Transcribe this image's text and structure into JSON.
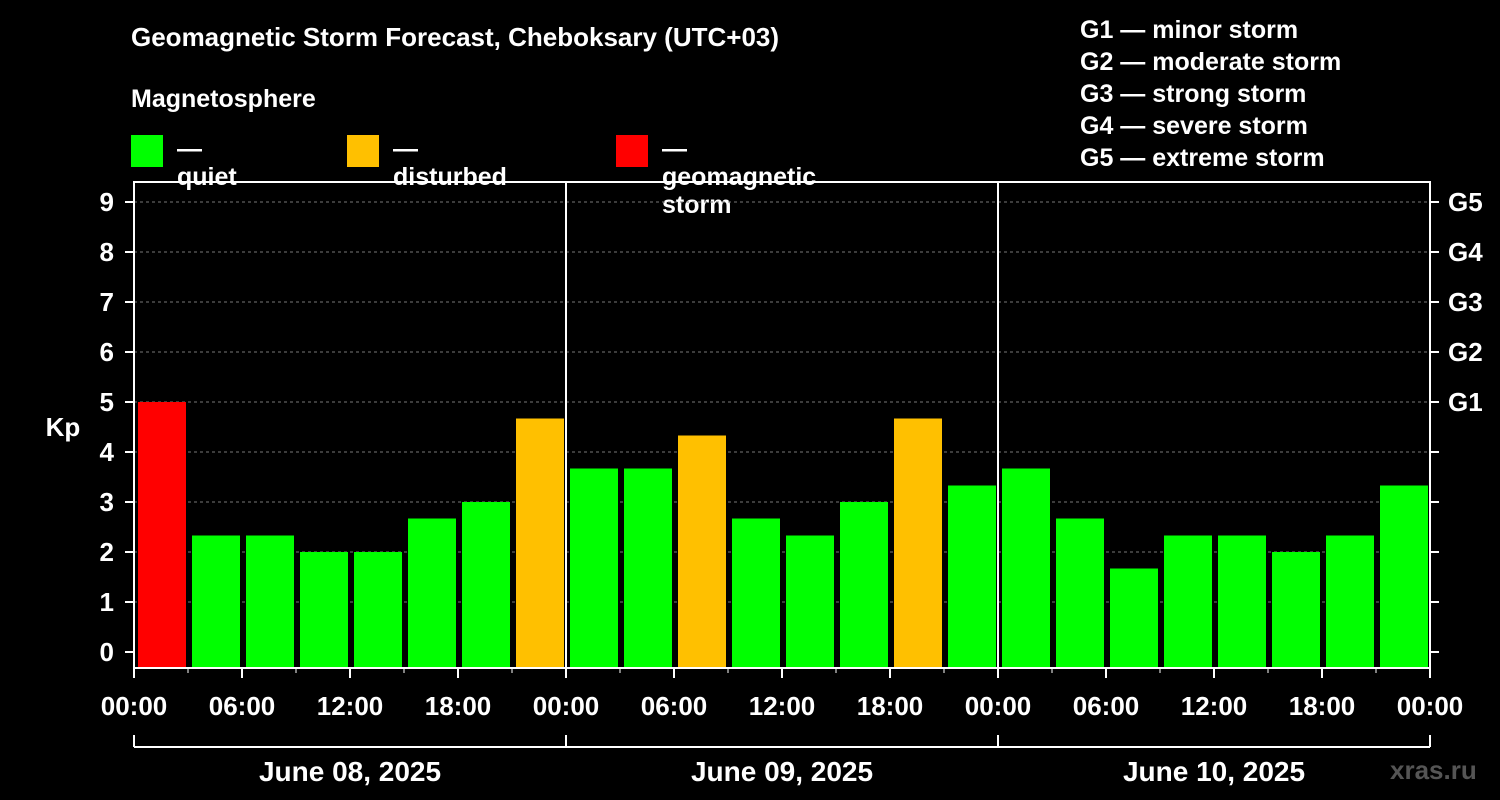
{
  "title": "Geomagnetic Storm Forecast, Cheboksary (UTC+03)",
  "subtitle": "Magnetosphere",
  "legend": [
    {
      "label": "— quiet",
      "color": "#00ff00"
    },
    {
      "label": "— disturbed",
      "color": "#ffc000"
    },
    {
      "label": "— geomagnetic storm",
      "color": "#ff0000"
    }
  ],
  "storm_scale": [
    "G1 — minor storm",
    "G2 — moderate storm",
    "G3 — strong storm",
    "G4 — severe storm",
    "G5 — extreme storm"
  ],
  "watermark": "xras.ru",
  "chart_data": {
    "type": "bar",
    "ylabel": "Kp",
    "ylim": [
      0,
      9
    ],
    "yticks": [
      "0",
      "1",
      "2",
      "3",
      "4",
      "5",
      "6",
      "7",
      "8",
      "9"
    ],
    "right_axis": {
      "ticks": [
        5,
        6,
        7,
        8,
        9
      ],
      "labels": [
        "G1",
        "G2",
        "G3",
        "G4",
        "G5"
      ]
    },
    "xtick_labels": [
      "00:00",
      "06:00",
      "12:00",
      "18:00",
      "00:00",
      "06:00",
      "12:00",
      "18:00",
      "00:00",
      "06:00",
      "12:00",
      "18:00",
      "00:00"
    ],
    "days": [
      "June 08, 2025",
      "June 09, 2025",
      "June 10, 2025"
    ],
    "interval_hours": 3,
    "grid": true,
    "colors": {
      "quiet": "#00ff00",
      "disturbed": "#ffc000",
      "storm": "#ff0000"
    },
    "values": [
      5.0,
      2.33,
      2.33,
      2.0,
      2.0,
      2.67,
      3.0,
      4.67,
      3.67,
      3.67,
      4.33,
      2.67,
      2.33,
      3.0,
      4.67,
      3.33,
      3.67,
      2.67,
      1.67,
      2.33,
      2.33,
      2.0,
      2.33,
      3.33
    ],
    "bar_status": [
      "storm",
      "quiet",
      "quiet",
      "quiet",
      "quiet",
      "quiet",
      "quiet",
      "disturbed",
      "quiet",
      "quiet",
      "disturbed",
      "quiet",
      "quiet",
      "quiet",
      "disturbed",
      "quiet",
      "quiet",
      "quiet",
      "quiet",
      "quiet",
      "quiet",
      "quiet",
      "quiet",
      "quiet"
    ]
  }
}
